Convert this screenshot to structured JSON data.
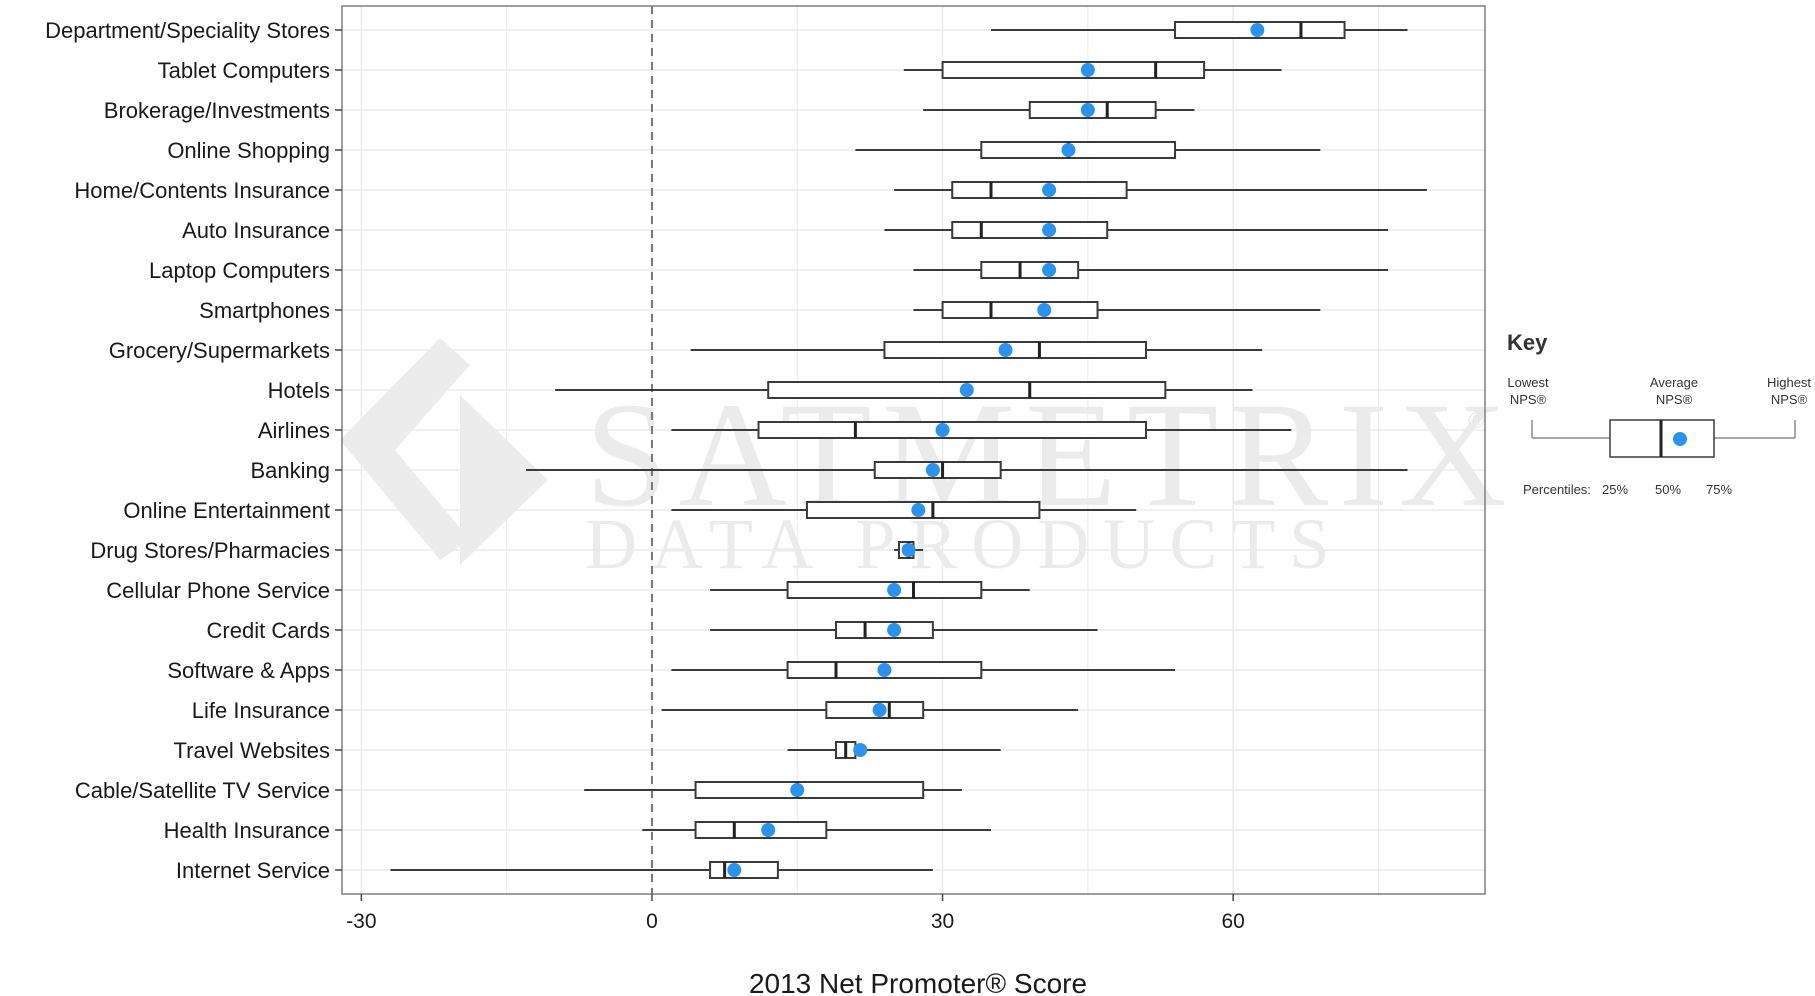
{
  "chart_data": {
    "type": "boxplot",
    "xlabel": "2013 Net Promoter® Score",
    "xlim": [
      -32,
      86
    ],
    "xticks": [
      -30,
      0,
      30,
      60
    ],
    "reference_line": 0,
    "grid": true,
    "legend": "right",
    "colors": {
      "mean_point": "#2a93ef",
      "box_stroke": "#3a3a3a",
      "grid": "#ebebeb",
      "reference": "#777777"
    },
    "categories": [
      "Department/Speciality Stores",
      "Tablet Computers",
      "Brokerage/Investments",
      "Online Shopping",
      "Home/Contents Insurance",
      "Auto Insurance",
      "Laptop Computers",
      "Smartphones",
      "Grocery/Supermarkets",
      "Hotels",
      "Airlines",
      "Banking",
      "Online Entertainment",
      "Drug Stores/Pharmacies",
      "Cellular Phone Service",
      "Credit Cards",
      "Software & Apps",
      "Life Insurance",
      "Travel Websites",
      "Cable/Satellite TV Service",
      "Health Insurance",
      "Internet Service"
    ],
    "series": [
      {
        "min": 35,
        "q1": 54,
        "median": 67,
        "q3": 71.5,
        "max": 78,
        "mean": 62.5
      },
      {
        "min": 26,
        "q1": 30,
        "median": 52,
        "q3": 57,
        "max": 65,
        "mean": 45
      },
      {
        "min": 28,
        "q1": 39,
        "median": 47,
        "q3": 52,
        "max": 56,
        "mean": 45
      },
      {
        "min": 21,
        "q1": 34,
        "median": 43,
        "q3": 54,
        "max": 69,
        "mean": 43
      },
      {
        "min": 25,
        "q1": 31,
        "median": 35,
        "q3": 49,
        "max": 80,
        "mean": 41
      },
      {
        "min": 24,
        "q1": 31,
        "median": 34,
        "q3": 47,
        "max": 76,
        "mean": 41
      },
      {
        "min": 27,
        "q1": 34,
        "median": 38,
        "q3": 44,
        "max": 76,
        "mean": 41
      },
      {
        "min": 27,
        "q1": 30,
        "median": 35,
        "q3": 46,
        "max": 69,
        "mean": 40.5
      },
      {
        "min": 4,
        "q1": 24,
        "median": 40,
        "q3": 51,
        "max": 63,
        "mean": 36.5
      },
      {
        "min": -10,
        "q1": 12,
        "median": 39,
        "q3": 53,
        "max": 62,
        "mean": 32.5
      },
      {
        "min": 2,
        "q1": 11,
        "median": 21,
        "q3": 51,
        "max": 66,
        "mean": 30
      },
      {
        "min": -13,
        "q1": 23,
        "median": 30,
        "q3": 36,
        "max": 78,
        "mean": 29
      },
      {
        "min": 2,
        "q1": 16,
        "median": 29,
        "q3": 40,
        "max": 50,
        "mean": 27.5
      },
      {
        "min": 25,
        "q1": 25.5,
        "median": 26.5,
        "q3": 27,
        "max": 28,
        "mean": 26.5
      },
      {
        "min": 6,
        "q1": 14,
        "median": 27,
        "q3": 34,
        "max": 39,
        "mean": 25
      },
      {
        "min": 6,
        "q1": 19,
        "median": 22,
        "q3": 29,
        "max": 46,
        "mean": 25
      },
      {
        "min": 2,
        "q1": 14,
        "median": 19,
        "q3": 34,
        "max": 54,
        "mean": 24
      },
      {
        "min": 1,
        "q1": 18,
        "median": 24.5,
        "q3": 28,
        "max": 44,
        "mean": 23.5
      },
      {
        "min": 14,
        "q1": 19,
        "median": 20,
        "q3": 21,
        "max": 36,
        "mean": 21.5
      },
      {
        "min": -7,
        "q1": 4.5,
        "median": 15,
        "q3": 28,
        "max": 32,
        "mean": 15
      },
      {
        "min": -1,
        "q1": 4.5,
        "median": 8.5,
        "q3": 18,
        "max": 35,
        "mean": 12
      },
      {
        "min": -27,
        "q1": 6,
        "median": 7.5,
        "q3": 13,
        "max": 29,
        "mean": 8.5
      }
    ]
  },
  "key": {
    "title": "Key",
    "lowest_line1": "Lowest",
    "lowest_line2": "NPS®",
    "average_line1": "Average",
    "average_line2": "NPS®",
    "highest_line1": "Highest",
    "highest_line2": "NPS®",
    "percentiles_label": "Percentiles:",
    "p25": "25%",
    "p50": "50%",
    "p75": "75%"
  },
  "watermark": {
    "line1": "SATMETRIX",
    "registered": "®",
    "line2": "DATA PRODUCTS"
  }
}
